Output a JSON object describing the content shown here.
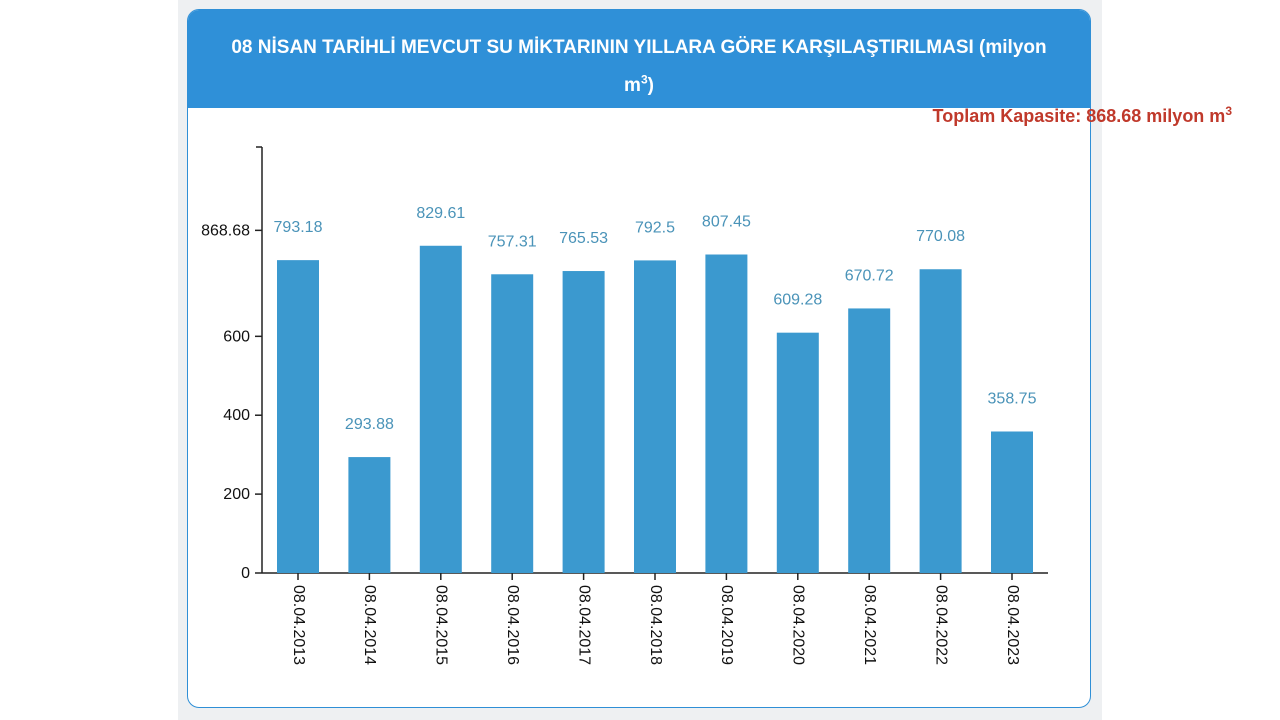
{
  "title_main": "08 NİSAN TARİHLİ MEVCUT SU MİKTARININ YILLARA GÖRE KARŞILAŞTIRILMASI (milyon",
  "title_unit": "m",
  "title_unit_sup": "3",
  "title_close": ")",
  "capacity_label": "Toplam Kapasite: 868.68 milyon m",
  "capacity_sup": "3",
  "colors": {
    "header": "#2f90d8",
    "bar": "#3b99cf",
    "value_label": "#4a93b8",
    "capacity": "#c0392b"
  },
  "chart_data": {
    "type": "bar",
    "title": "08 NİSAN TARİHLİ MEVCUT SU MİKTARININ YILLARA GÖRE KARŞILAŞTIRILMASI (milyon m³)",
    "categories": [
      "08.04.2013",
      "08.04.2014",
      "08.04.2015",
      "08.04.2016",
      "08.04.2017",
      "08.04.2018",
      "08.04.2019",
      "08.04.2020",
      "08.04.2021",
      "08.04.2022",
      "08.04.2023"
    ],
    "values": [
      793.18,
      293.88,
      829.61,
      757.31,
      765.53,
      792.5,
      807.45,
      609.28,
      670.72,
      770.08,
      358.75
    ],
    "value_labels": [
      "793.18",
      "293.88",
      "829.61",
      "757.31",
      "765.53",
      "792.5",
      "807.45",
      "609.28",
      "670.72",
      "770.08",
      "358.75"
    ],
    "y_ticks": [
      0,
      200,
      400,
      600,
      868.68
    ],
    "y_tick_labels": [
      "0",
      "200",
      "400",
      "600",
      "868.68"
    ],
    "ylim": [
      0,
      1080
    ],
    "xlabel": "",
    "ylabel": "",
    "grid": false,
    "legend": "none"
  }
}
